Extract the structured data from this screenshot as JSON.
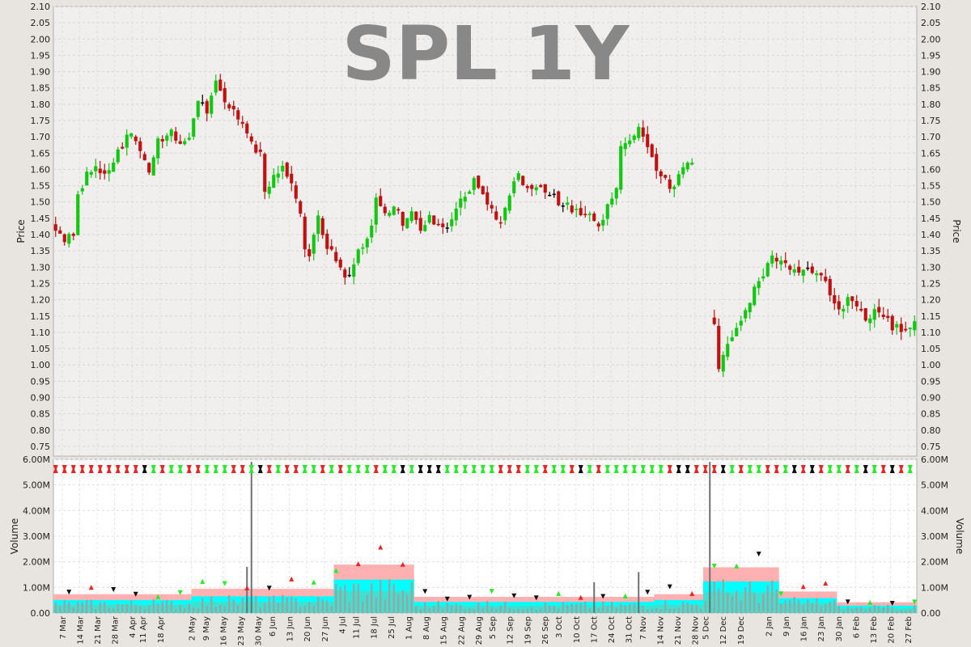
{
  "chart_data": [
    {
      "type": "candlestick",
      "title": "SPL 1Y",
      "ylabel": "Price",
      "ylim": [
        0.72,
        2.1
      ],
      "yticks": [
        "2.10",
        "2.05",
        "2.00",
        "1.95",
        "1.90",
        "1.85",
        "1.80",
        "1.75",
        "1.70",
        "1.65",
        "1.60",
        "1.55",
        "1.50",
        "1.45",
        "1.40",
        "1.35",
        "1.30",
        "1.25",
        "1.20",
        "1.15",
        "1.10",
        "1.05",
        "1.00",
        "0.95",
        "0.90",
        "0.85",
        "0.80",
        "0.75"
      ],
      "grid": true,
      "up_color": "#11c811",
      "down_color": "#c01010",
      "unchanged_color": "#000000",
      "price_path": [
        [
          0,
          1.4
        ],
        [
          2,
          1.38
        ],
        [
          4,
          1.4
        ],
        [
          5,
          1.52
        ],
        [
          7,
          1.58
        ],
        [
          9,
          1.61
        ],
        [
          11,
          1.58
        ],
        [
          14,
          1.65
        ],
        [
          17,
          1.72
        ],
        [
          19,
          1.65
        ],
        [
          21,
          1.6
        ],
        [
          23,
          1.68
        ],
        [
          26,
          1.71
        ],
        [
          28,
          1.68
        ],
        [
          30,
          1.7
        ],
        [
          32,
          1.82
        ],
        [
          34,
          1.78
        ],
        [
          36,
          1.86
        ],
        [
          38,
          1.8
        ],
        [
          40,
          1.77
        ],
        [
          42,
          1.75
        ],
        [
          44,
          1.68
        ],
        [
          46,
          1.64
        ],
        [
          47,
          1.53
        ],
        [
          49,
          1.57
        ],
        [
          51,
          1.61
        ],
        [
          53,
          1.55
        ],
        [
          55,
          1.45
        ],
        [
          56,
          1.35
        ],
        [
          57,
          1.33
        ],
        [
          59,
          1.45
        ],
        [
          61,
          1.37
        ],
        [
          63,
          1.31
        ],
        [
          65,
          1.27
        ],
        [
          67,
          1.31
        ],
        [
          68,
          1.36
        ],
        [
          70,
          1.38
        ],
        [
          72,
          1.5
        ],
        [
          74,
          1.47
        ],
        [
          76,
          1.49
        ],
        [
          78,
          1.43
        ],
        [
          80,
          1.46
        ],
        [
          82,
          1.42
        ],
        [
          84,
          1.45
        ],
        [
          86,
          1.44
        ],
        [
          88,
          1.42
        ],
        [
          90,
          1.48
        ],
        [
          92,
          1.52
        ],
        [
          94,
          1.57
        ],
        [
          96,
          1.52
        ],
        [
          98,
          1.47
        ],
        [
          100,
          1.43
        ],
        [
          102,
          1.52
        ],
        [
          104,
          1.58
        ],
        [
          106,
          1.53
        ],
        [
          108,
          1.55
        ],
        [
          110,
          1.53
        ],
        [
          112,
          1.52
        ],
        [
          114,
          1.49
        ],
        [
          116,
          1.48
        ],
        [
          118,
          1.47
        ],
        [
          120,
          1.45
        ],
        [
          122,
          1.41
        ],
        [
          124,
          1.49
        ],
        [
          126,
          1.55
        ],
        [
          127,
          1.67
        ],
        [
          129,
          1.7
        ],
        [
          131,
          1.72
        ],
        [
          133,
          1.68
        ],
        [
          135,
          1.6
        ],
        [
          137,
          1.56
        ],
        [
          139,
          1.55
        ],
        [
          141,
          1.62
        ],
        [
          143,
          1.63
        ],
        [
          148,
          1.13
        ],
        [
          149,
          1.0
        ],
        [
          151,
          1.05
        ],
        [
          153,
          1.12
        ],
        [
          155,
          1.17
        ],
        [
          157,
          1.23
        ],
        [
          159,
          1.26
        ],
        [
          161,
          1.35
        ],
        [
          162,
          1.33
        ],
        [
          164,
          1.3
        ],
        [
          166,
          1.3
        ],
        [
          168,
          1.29
        ],
        [
          170,
          1.29
        ],
        [
          172,
          1.27
        ],
        [
          174,
          1.22
        ],
        [
          176,
          1.17
        ],
        [
          178,
          1.2
        ],
        [
          180,
          1.18
        ],
        [
          182,
          1.15
        ],
        [
          184,
          1.16
        ],
        [
          186,
          1.15
        ],
        [
          188,
          1.12
        ],
        [
          190,
          1.11
        ],
        [
          192,
          1.12
        ],
        [
          193,
          1.14
        ]
      ],
      "gap_sessions": [
        144,
        147
      ],
      "session_count": 194
    },
    {
      "type": "bar",
      "ylabel": "Volume",
      "ylim": [
        0,
        6000000
      ],
      "yticks": [
        "6.00M",
        "5.00M",
        "4.00M",
        "3.00M",
        "2.00M",
        "1.00M",
        "0.00"
      ],
      "spikes": [
        [
          44,
          5900000
        ],
        [
          147,
          5900000
        ],
        [
          43,
          1800000
        ],
        [
          121,
          1200000
        ],
        [
          131,
          1600000
        ]
      ],
      "volume_bands": [
        [
          0,
          30,
          350000
        ],
        [
          31,
          62,
          450000
        ],
        [
          63,
          80,
          900000
        ],
        [
          81,
          134,
          300000
        ],
        [
          135,
          145,
          350000
        ],
        [
          146,
          162,
          850000
        ],
        [
          163,
          175,
          400000
        ],
        [
          176,
          193,
          200000
        ]
      ],
      "band_colors": [
        "#ffb0b0",
        "#00ffff",
        "#40e0d0",
        "#a0a0a0"
      ],
      "xlabels": [
        {
          "label": "7 Mar",
          "i": 2
        },
        {
          "label": "14 Mar",
          "i": 7
        },
        {
          "label": "21 Mar",
          "i": 12
        },
        {
          "label": "28 Mar",
          "i": 17
        },
        {
          "label": "4 Apr",
          "i": 22
        },
        {
          "label": "11 Apr",
          "i": 25
        },
        {
          "label": "18 Apr",
          "i": 30
        },
        {
          "label": "2 May",
          "i": 39
        },
        {
          "label": "9 May",
          "i": 43
        },
        {
          "label": "16 May",
          "i": 48
        },
        {
          "label": "23 May",
          "i": 53
        },
        {
          "label": "30 May",
          "i": 58
        },
        {
          "label": "6 Jun",
          "i": 62
        },
        {
          "label": "13 Jun",
          "i": 67
        },
        {
          "label": "20 Jun",
          "i": 72
        },
        {
          "label": "27 Jun",
          "i": 77
        },
        {
          "label": "4 Jul",
          "i": 82
        },
        {
          "label": "11 Jul",
          "i": 86
        },
        {
          "label": "18 Jul",
          "i": 91
        },
        {
          "label": "25 Jul",
          "i": 96
        },
        {
          "label": "1 Aug",
          "i": 101
        },
        {
          "label": "8 Aug",
          "i": 106
        },
        {
          "label": "15 Aug",
          "i": 111
        },
        {
          "label": "22 Aug",
          "i": 116
        },
        {
          "label": "29 Aug",
          "i": 121
        },
        {
          "label": "5 Sep",
          "i": 125
        },
        {
          "label": "12 Sep",
          "i": 130
        },
        {
          "label": "19 Sep",
          "i": 135
        },
        {
          "label": "26 Sep",
          "i": 140
        },
        {
          "label": "3 Oct",
          "i": 144
        },
        {
          "label": "10 Oct",
          "i": 149
        },
        {
          "label": "17 Oct",
          "i": 154
        },
        {
          "label": "24 Oct",
          "i": 159
        },
        {
          "label": "31 Oct",
          "i": 164
        },
        {
          "label": "7 Nov",
          "i": 168
        },
        {
          "label": "14 Nov",
          "i": 173
        },
        {
          "label": "21 Nov",
          "i": 178
        },
        {
          "label": "28 Nov",
          "i": 183
        },
        {
          "label": "5 Dec",
          "i": 186
        },
        {
          "label": "12 Dec",
          "i": 191
        },
        {
          "label": "19 Dec",
          "i": 196
        },
        {
          "label": "2 Jan",
          "i": 204
        },
        {
          "label": "9 Jan",
          "i": 209
        },
        {
          "label": "16 Jan",
          "i": 214
        },
        {
          "label": "23 Jan",
          "i": 219
        },
        {
          "label": "30 Jan",
          "i": 224
        },
        {
          "label": "6 Feb",
          "i": 229
        },
        {
          "label": "13 Feb",
          "i": 234
        },
        {
          "label": "20 Feb",
          "i": 239
        },
        {
          "label": "27 Feb",
          "i": 244
        }
      ],
      "xlabel_count": 247
    }
  ]
}
